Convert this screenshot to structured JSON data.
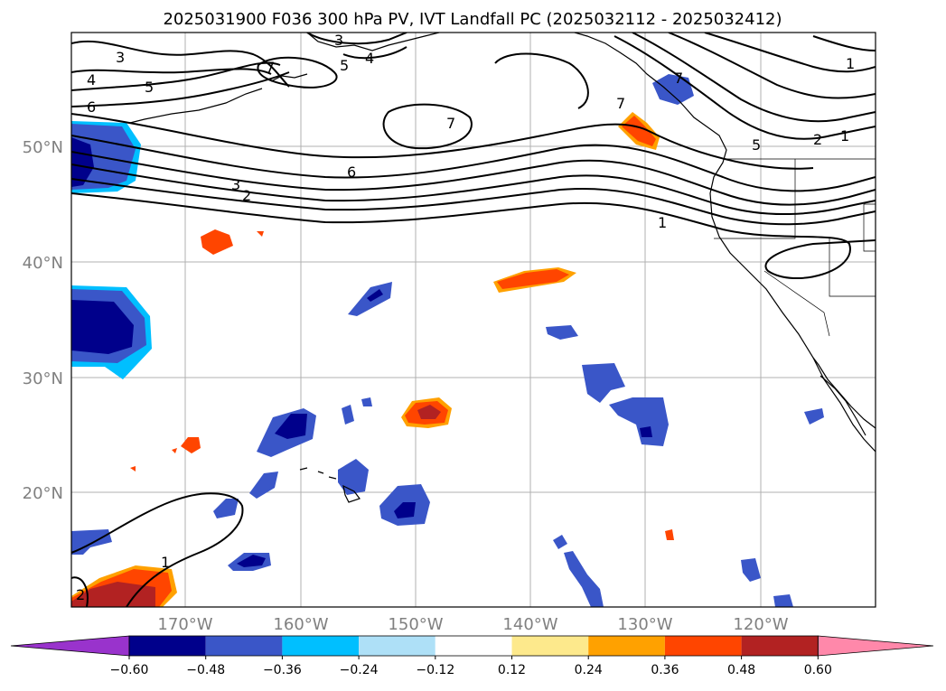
{
  "title": "2025031900 F036 300 hPa PV, IVT Landfall PC (2025032112 - 2025032412)",
  "lon_labels": [
    "170°W",
    "160°W",
    "150°W",
    "140°W",
    "130°W",
    "120°W"
  ],
  "lat_labels": [
    "50°N",
    "40°N",
    "30°N",
    "20°N"
  ],
  "contour_labels": [
    "3",
    "4",
    "5",
    "6",
    "7",
    "5",
    "4",
    "3",
    "7",
    "6",
    "3",
    "2",
    "7",
    "7",
    "5",
    "2",
    "1",
    "1",
    "1",
    "2"
  ],
  "colorbar": {
    "ticks": [
      "−0.60",
      "−0.48",
      "−0.36",
      "−0.24",
      "−0.12",
      "0.12",
      "0.24",
      "0.36",
      "0.48",
      "0.60"
    ],
    "colors": [
      "#9933cc",
      "#00008b",
      "#3a56c8",
      "#00bfff",
      "#aee0f7",
      "#ffffff",
      "#fde98c",
      "#ffa100",
      "#ff4500",
      "#b22222",
      "#ff88aa"
    ]
  },
  "colors": {
    "land_line": "#000000",
    "grid": "#b0b0b0",
    "lat_lon_label": "#808080"
  }
}
